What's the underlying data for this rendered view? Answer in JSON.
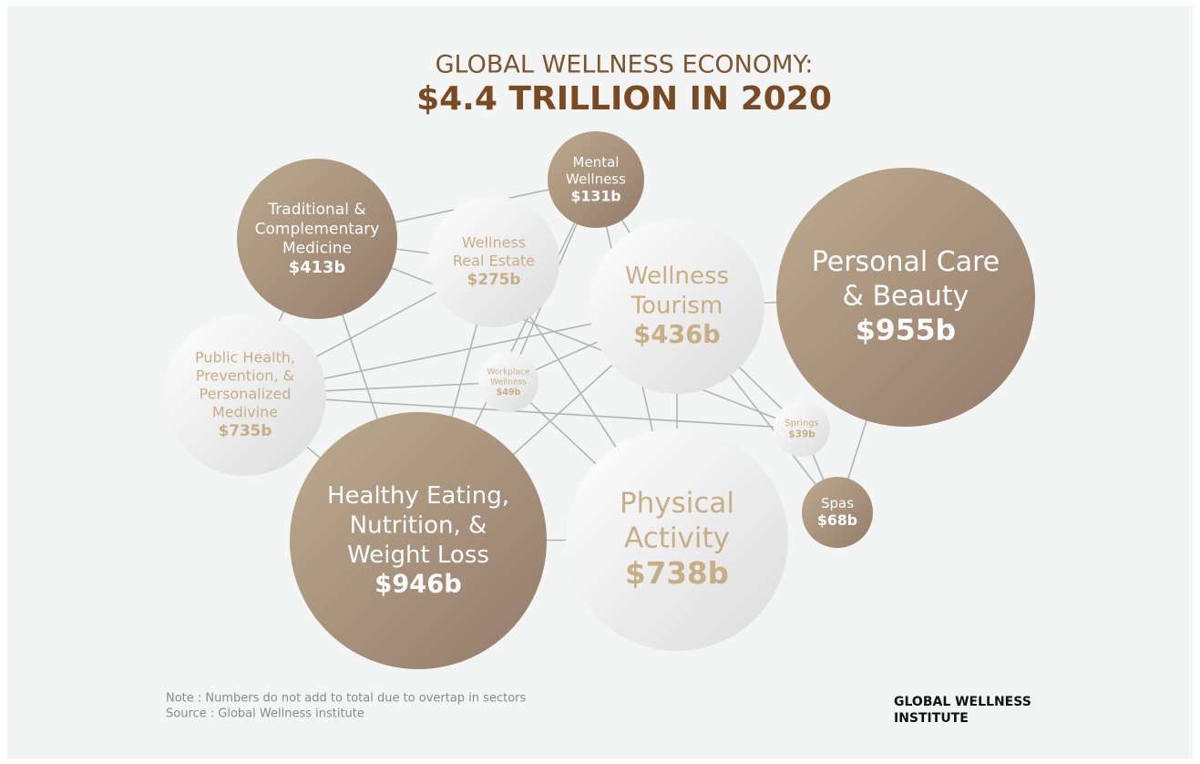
{
  "header": {
    "title": "GLOBAL WELLNESS ECONOMY:",
    "subtitle": "$4.4 TRILLION IN 2020"
  },
  "nodes": [
    {
      "lines": [
        "Traditional &",
        "Complementary",
        "Medicine"
      ],
      "value": "$413b"
    },
    {
      "lines": [
        "Wellness",
        "Real Estate"
      ],
      "value": "$275b"
    },
    {
      "lines": [
        "Mental",
        "Wellness"
      ],
      "value": "$131b"
    },
    {
      "lines": [
        "Wellness",
        "Tourism"
      ],
      "value": "$436b"
    },
    {
      "lines": [
        "Personal Care",
        "& Beauty"
      ],
      "value": "$955b"
    },
    {
      "lines": [
        "Public Health,",
        "Prevention, &",
        "Personalized",
        "Medivine"
      ],
      "value": "$735b"
    },
    {
      "lines": [
        "Workplace",
        "Wellness"
      ],
      "value": "$49b"
    },
    {
      "lines": [
        "Springs"
      ],
      "value": "$39b"
    },
    {
      "lines": [
        "Spas"
      ],
      "value": "$68b"
    },
    {
      "lines": [
        "Healthy Eating,",
        "Nutrition, &",
        "Weight Loss"
      ],
      "value": "$946b"
    },
    {
      "lines": [
        "Physical",
        "Activity"
      ],
      "value": "$738b"
    }
  ],
  "footer": {
    "note": "Note : Numbers do not add to total due to overtap in sectors",
    "source": "Source : Global Wellness institute",
    "logo": [
      "GLOBAL WELLNESS",
      "INSTITUTE"
    ]
  }
}
